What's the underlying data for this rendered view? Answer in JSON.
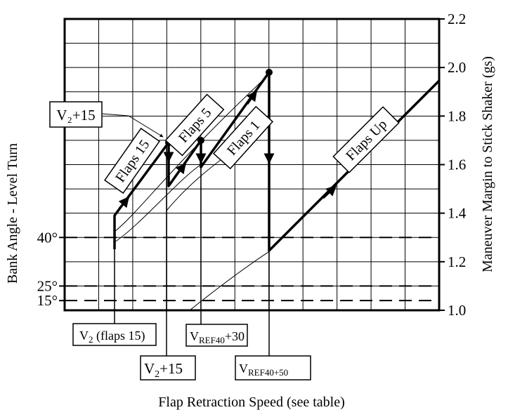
{
  "chart_data": {
    "type": "line",
    "title": "",
    "xlabel": "Flap Retraction Speed (see table)",
    "ylabel_right": "Maneuver Margin to Stick Shaker (gs)",
    "ylabel_left": "Bank Angle - Level Turn",
    "ylim": [
      1.0,
      2.2
    ],
    "yticks": [
      "1.0",
      "1.2",
      "1.4",
      "1.6",
      "1.8",
      "2.0",
      "2.2"
    ],
    "grid": true,
    "bank_angles": [
      {
        "label": "40°",
        "g": 1.3
      },
      {
        "label": "25°",
        "g": 1.1
      },
      {
        "label": "15°",
        "g": 1.04
      }
    ],
    "series": [
      {
        "name": "Flaps 15"
      },
      {
        "name": "Flaps 5"
      },
      {
        "name": "Flaps 1"
      },
      {
        "name": "Flaps Up"
      }
    ],
    "speed_labels": [
      {
        "id": "v2-flaps15",
        "text": "V₂ (flaps 15)"
      },
      {
        "id": "v2-plus15",
        "text": "V₂+15"
      },
      {
        "id": "vref40-plus30",
        "text": "V_REF40+30"
      },
      {
        "id": "vref40-plus50",
        "text": "V_REF40+50"
      }
    ],
    "callout": "V₂+15"
  }
}
